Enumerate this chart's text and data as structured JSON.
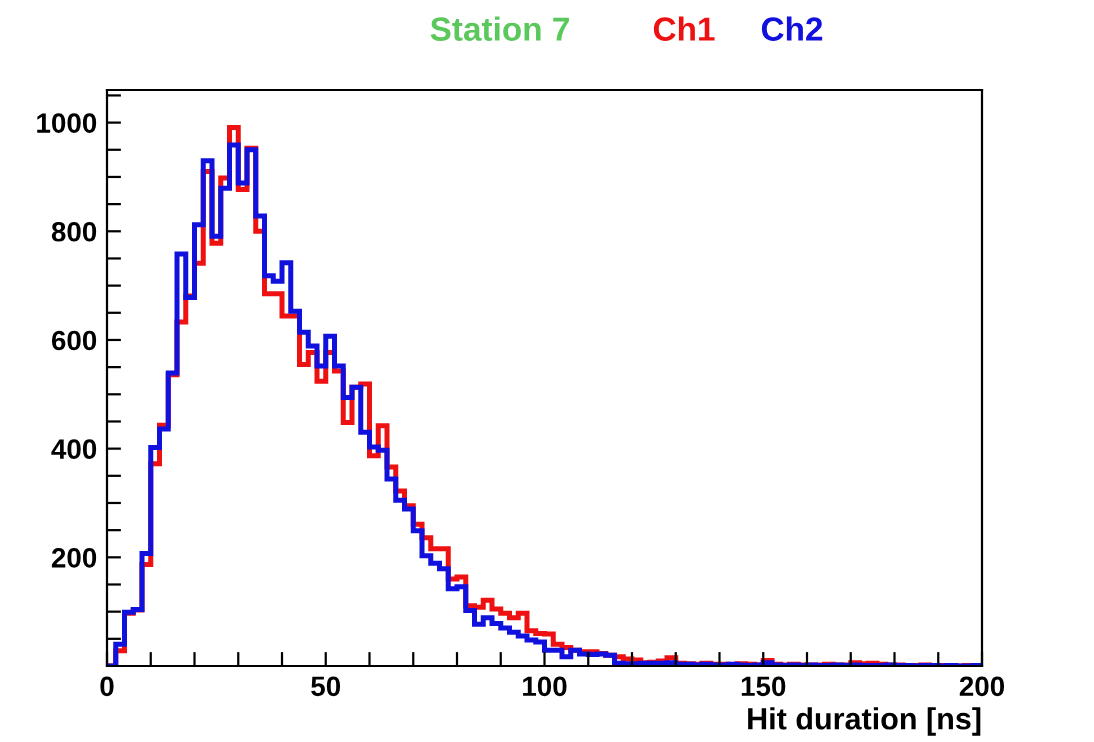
{
  "chart_data": {
    "type": "histogram",
    "title": "Station 7",
    "xlabel": "Hit duration [ns]",
    "bins": [
      0,
      2,
      4,
      6,
      8,
      10,
      12,
      14,
      16,
      18,
      20,
      22,
      24,
      26,
      28,
      30,
      32,
      34,
      36,
      38,
      40,
      42,
      44,
      46,
      48,
      50,
      52,
      54,
      56,
      58,
      60,
      62,
      64,
      66,
      68,
      70,
      72,
      74,
      76,
      78,
      80,
      82,
      84,
      86,
      88,
      90,
      92,
      94,
      96,
      98,
      100,
      102,
      104,
      106,
      108,
      110,
      112,
      114,
      116,
      118,
      120,
      122,
      124,
      126,
      128,
      130,
      132,
      134,
      136,
      138,
      140,
      142,
      144,
      146,
      148,
      150,
      152,
      154,
      156,
      158,
      160,
      162,
      164,
      166,
      168,
      170,
      172,
      174,
      176,
      178,
      180,
      182,
      184,
      186,
      188,
      190,
      192,
      194,
      196,
      198,
      200
    ],
    "series": [
      {
        "name": "Ch1",
        "color": "#ee1111",
        "values": [
          0,
          28,
          97,
          103,
          187,
          372,
          443,
          536,
          633,
          681,
          741,
          910,
          778,
          898,
          991,
          877,
          953,
          800,
          685,
          685,
          644,
          644,
          555,
          577,
          524,
          577,
          543,
          448,
          513,
          519,
          387,
          442,
          366,
          322,
          295,
          261,
          236,
          216,
          216,
          160,
          164,
          111,
          108,
          121,
          105,
          97,
          89,
          97,
          65,
          60,
          59,
          40,
          34,
          29,
          26,
          26,
          23,
          20,
          17,
          13,
          11,
          6,
          7,
          9,
          15,
          5,
          4,
          3,
          5,
          3,
          3,
          2,
          4,
          3,
          2,
          10,
          3,
          2,
          3,
          2,
          2,
          2,
          3,
          2,
          2,
          6,
          4,
          5,
          3,
          2,
          2,
          1,
          1,
          2,
          1,
          1,
          1,
          0,
          1,
          1
        ]
      },
      {
        "name": "Ch2",
        "color": "#1111dd",
        "values": [
          0,
          40,
          99,
          104,
          207,
          402,
          436,
          539,
          758,
          678,
          812,
          930,
          791,
          879,
          959,
          889,
          950,
          828,
          718,
          708,
          742,
          653,
          614,
          589,
          552,
          607,
          552,
          494,
          513,
          430,
          403,
          397,
          344,
          305,
          289,
          249,
          203,
          189,
          179,
          142,
          146,
          102,
          77,
          89,
          78,
          70,
          62,
          55,
          48,
          44,
          29,
          29,
          17,
          29,
          22,
          21,
          22,
          20,
          5,
          4,
          4,
          5,
          5,
          5,
          6,
          3,
          3,
          2,
          3,
          2,
          2,
          3,
          2,
          1,
          2,
          6,
          2,
          1,
          2,
          1,
          2,
          1,
          1,
          2,
          1,
          2,
          1,
          1,
          1,
          2,
          1,
          1,
          0,
          1,
          1,
          0,
          1,
          0,
          0,
          1
        ]
      }
    ],
    "xlim": [
      0,
      200
    ],
    "ylim": [
      0,
      1060
    ],
    "xticks": [
      0,
      {
        "value": 10,
        "label": null
      },
      {
        "value": 20,
        "label": null
      },
      {
        "value": 30,
        "label": null
      },
      {
        "value": 40,
        "label": null
      },
      50,
      {
        "value": 60,
        "label": null
      },
      {
        "value": 70,
        "label": null
      },
      {
        "value": 80,
        "label": null
      },
      {
        "value": 90,
        "label": null
      },
      100,
      {
        "value": 110,
        "label": null
      },
      {
        "value": 120,
        "label": null
      },
      {
        "value": 130,
        "label": null
      },
      {
        "value": 140,
        "label": null
      },
      150,
      {
        "value": 160,
        "label": null
      },
      {
        "value": 170,
        "label": null
      },
      {
        "value": 180,
        "label": null
      },
      {
        "value": 190,
        "label": null
      },
      200
    ],
    "yticks": [
      {
        "value": 50,
        "label": null
      },
      {
        "value": 100,
        "label": null
      },
      {
        "value": 150,
        "label": null
      },
      200,
      {
        "value": 250,
        "label": null
      },
      {
        "value": 300,
        "label": null
      },
      {
        "value": 350,
        "label": null
      },
      400,
      {
        "value": 450,
        "label": null
      },
      {
        "value": 500,
        "label": null
      },
      {
        "value": 550,
        "label": null
      },
      600,
      {
        "value": 650,
        "label": null
      },
      {
        "value": 700,
        "label": null
      },
      {
        "value": 750,
        "label": null
      },
      800,
      {
        "value": 850,
        "label": null
      },
      {
        "value": 900,
        "label": null
      },
      {
        "value": 950,
        "label": null
      },
      1000,
      {
        "value": 1050,
        "label": null
      }
    ],
    "grid": false,
    "legend": "top"
  }
}
